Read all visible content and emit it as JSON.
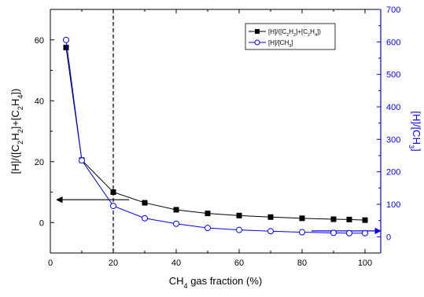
{
  "chart_data": {
    "type": "line",
    "xlabel": {
      "pre": "CH",
      "sub": "4",
      "post": " gas fraction (%)"
    },
    "ylabel_left": [
      {
        "t": "[H]/([C",
        "sub": false
      },
      {
        "t": "2",
        "sub": true
      },
      {
        "t": "H",
        "sub": false
      },
      {
        "t": "2",
        "sub": true
      },
      {
        "t": "]+[C",
        "sub": false
      },
      {
        "t": "2",
        "sub": true
      },
      {
        "t": "H",
        "sub": false
      },
      {
        "t": "4",
        "sub": true
      },
      {
        "t": "])",
        "sub": false
      }
    ],
    "ylabel_right": [
      {
        "t": "[H]/[CH",
        "sub": false
      },
      {
        "t": "3",
        "sub": true
      },
      {
        "t": "]",
        "sub": false
      }
    ],
    "xlim": [
      0,
      105
    ],
    "ylim_left": [
      -10,
      70
    ],
    "ylim_right": [
      -50,
      700
    ],
    "x_ticks": [
      0,
      20,
      40,
      60,
      80,
      100
    ],
    "y_left_ticks": [
      0,
      20,
      40,
      60
    ],
    "y_right_ticks": [
      0,
      100,
      200,
      300,
      400,
      500,
      600,
      700
    ],
    "grid": false,
    "legend_position": "top-right",
    "series": [
      {
        "name": [
          {
            "t": "[H]/([C",
            "sub": false
          },
          {
            "t": "2",
            "sub": true
          },
          {
            "t": "H",
            "sub": false
          },
          {
            "t": "2",
            "sub": true
          },
          {
            "t": "]+[C",
            "sub": false
          },
          {
            "t": "2",
            "sub": true
          },
          {
            "t": "H",
            "sub": false
          },
          {
            "t": "4",
            "sub": true
          },
          {
            "t": "])",
            "sub": false
          }
        ],
        "axis": "left",
        "color": "#000000",
        "marker": "filled-square",
        "x": [
          5,
          10,
          20,
          30,
          40,
          50,
          60,
          70,
          80,
          90,
          95,
          100
        ],
        "y": [
          57.5,
          20.5,
          10.0,
          6.5,
          4.2,
          3.0,
          2.3,
          1.8,
          1.4,
          1.1,
          1.0,
          0.8
        ]
      },
      {
        "name": [
          {
            "t": "[H]/[CH",
            "sub": false
          },
          {
            "t": "3",
            "sub": true
          },
          {
            "t": "]",
            "sub": false
          }
        ],
        "axis": "right",
        "color": "#0000ff",
        "marker": "open-circle",
        "x": [
          5,
          10,
          20,
          30,
          40,
          50,
          60,
          70,
          80,
          90,
          95,
          100
        ],
        "y": [
          606,
          235,
          95,
          57,
          40,
          27,
          21,
          17,
          14,
          12,
          11,
          11
        ]
      }
    ],
    "annotations": [
      {
        "type": "vertical-dashed-line",
        "x": 20
      },
      {
        "type": "arrow",
        "axis": "left",
        "from_x": 25,
        "to_x": 2,
        "y": 7.5,
        "color": "#000000"
      },
      {
        "type": "arrow",
        "axis": "right",
        "from_x": 83,
        "to_x": 105,
        "y": 18,
        "color": "#0000ff"
      }
    ]
  }
}
